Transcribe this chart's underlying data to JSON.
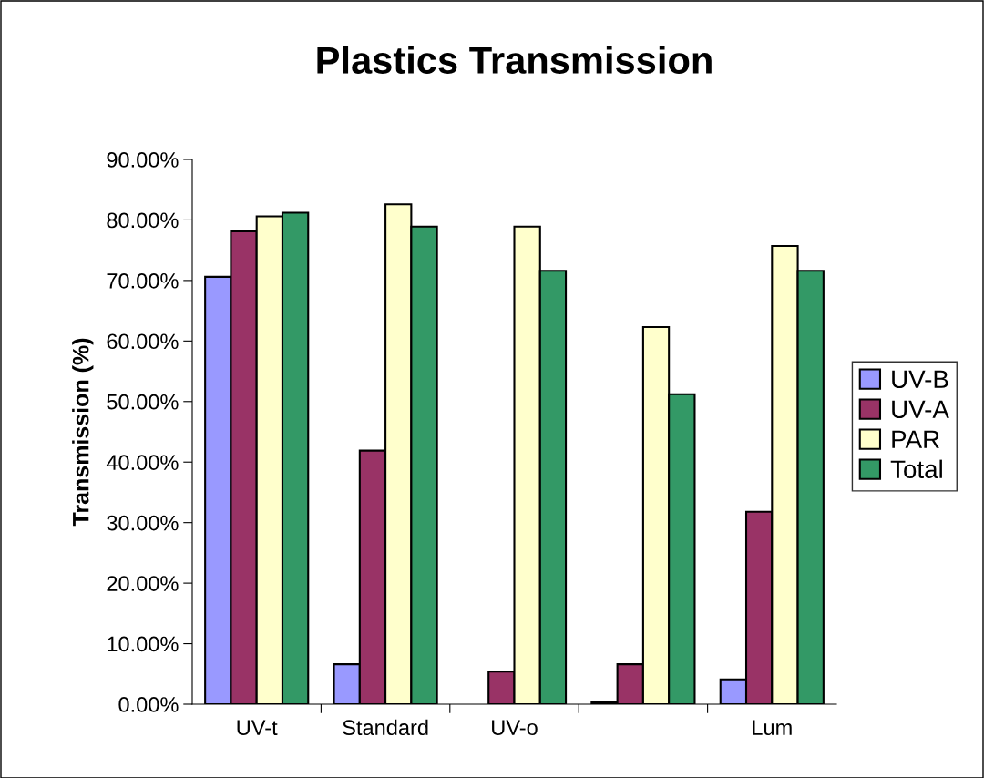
{
  "chart_data": {
    "type": "bar",
    "title": "Plastics Transmission",
    "ylabel": "Transmission (%)",
    "categories": [
      "UV-t",
      "Standard",
      "UV-o",
      null,
      "Lum"
    ],
    "series": [
      {
        "name": "UV-B",
        "color": "#9999ff",
        "values": [
          70.6,
          6.6,
          null,
          0.3,
          4.1
        ]
      },
      {
        "name": "UV-A",
        "color": "#993366",
        "values": [
          78.1,
          41.9,
          5.4,
          6.6,
          31.8
        ]
      },
      {
        "name": "PAR",
        "color": "#ffffcc",
        "values": [
          80.6,
          82.6,
          78.9,
          62.3,
          75.7
        ]
      },
      {
        "name": "Total",
        "color": "#339966",
        "values": [
          81.2,
          78.9,
          71.6,
          51.2,
          71.6
        ]
      }
    ],
    "ylim": [
      0,
      90
    ],
    "yticks": [
      {
        "value": 0,
        "label": "0.00%"
      },
      {
        "value": 10,
        "label": "10.00%"
      },
      {
        "value": 20,
        "label": "20.00%"
      },
      {
        "value": 30,
        "label": "30.00%"
      },
      {
        "value": 40,
        "label": "40.00%"
      },
      {
        "value": 50,
        "label": "50.00%"
      },
      {
        "value": 60,
        "label": "60.00%"
      },
      {
        "value": 70,
        "label": "70.00%"
      },
      {
        "value": 80,
        "label": "80.00%"
      },
      {
        "value": 90,
        "label": "90.00%"
      }
    ],
    "grid": false,
    "legend": "right"
  }
}
